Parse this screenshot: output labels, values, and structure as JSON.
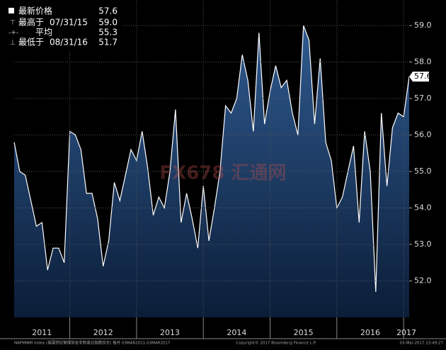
{
  "chart_data": {
    "type": "area",
    "series": [
      {
        "name": "NAPMNMI Index",
        "color": "#ffffff",
        "values": [
          55.8,
          55.0,
          54.9,
          54.2,
          53.5,
          53.6,
          52.3,
          52.9,
          52.9,
          52.5,
          56.1,
          56.0,
          55.6,
          54.4,
          54.4,
          53.7,
          52.4,
          53.1,
          54.7,
          54.2,
          54.9,
          55.6,
          55.3,
          56.1,
          55.1,
          53.8,
          54.3,
          54.0,
          55.0,
          56.7,
          53.6,
          54.4,
          53.7,
          52.9,
          54.6,
          53.1,
          54.0,
          55.0,
          56.8,
          56.6,
          57.0,
          58.2,
          57.5,
          56.1,
          58.8,
          56.3,
          57.2,
          57.9,
          57.3,
          57.5,
          56.6,
          56.0,
          59.0,
          58.6,
          56.3,
          58.1,
          55.8,
          55.3,
          54.0,
          54.3,
          55.0,
          55.7,
          53.6,
          56.1,
          55.0,
          51.7,
          56.6,
          54.6,
          56.2,
          56.6,
          56.5,
          57.6
        ]
      }
    ],
    "ylim": [
      51.0,
      59.7
    ],
    "yticks": [
      {
        "value": 52,
        "label": "52.0"
      },
      {
        "value": 53,
        "label": "53.0"
      },
      {
        "value": 54,
        "label": "54.0"
      },
      {
        "value": 55,
        "label": "55.0"
      },
      {
        "value": 56,
        "label": "56.0"
      },
      {
        "value": 57,
        "label": "57.0"
      },
      {
        "value": 58,
        "label": "58.0"
      },
      {
        "value": 59,
        "label": "59.0"
      }
    ],
    "xticks": [
      "2011",
      "2012",
      "2013",
      "2014",
      "2015",
      "2016",
      "2017"
    ],
    "legend": [
      {
        "label": "最新价格",
        "value": 57.6
      },
      {
        "label": "最高于",
        "date": "07/31/15",
        "value": 59.0
      },
      {
        "label": "平均",
        "value": 55.3
      },
      {
        "label": "最低于",
        "date": "08/31/16",
        "value": 51.7
      }
    ],
    "footer": {
      "left": "NAPMNMI Index (美国供应管理协会非制造业指数综合)  每月 03MAR2011-03MAR2017",
      "center": "Copyright© 2017 Bloomberg Finance L.P.",
      "right": "03-Mar-2017 23:49:27"
    },
    "watermark": "FX678 汇通网",
    "grid": true
  }
}
